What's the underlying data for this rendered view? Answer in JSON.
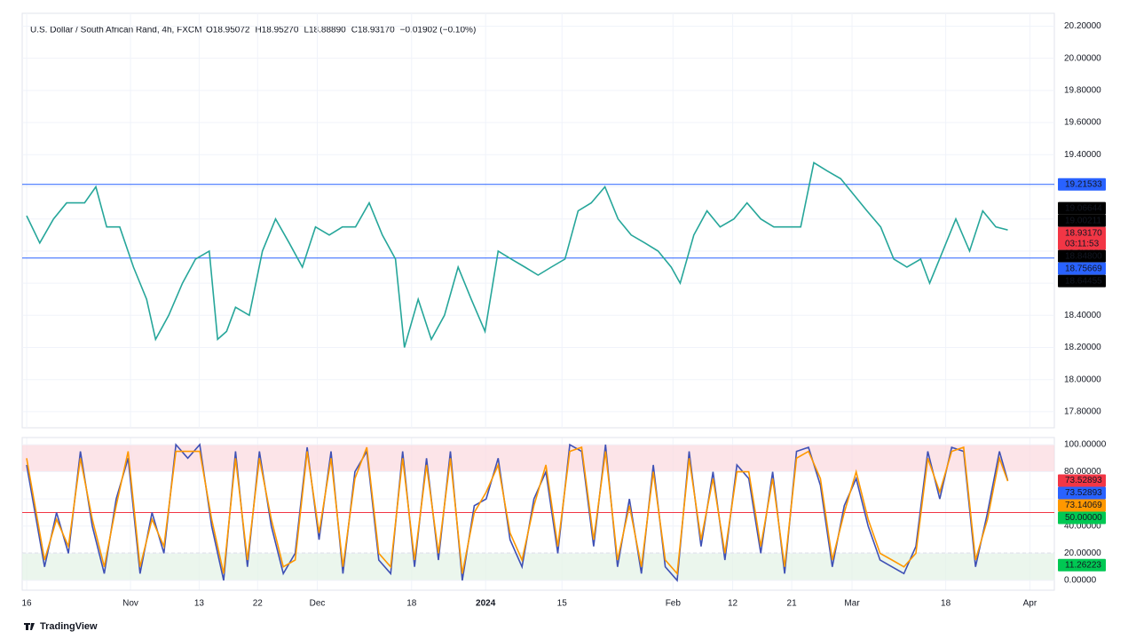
{
  "chart_data": [
    {
      "type": "line",
      "title": "U.S. Dollar / South African Rand, 4h, FXCM",
      "ohlc": [
        "O18.95072",
        "H18.95270",
        "L18.88890",
        "C18.93170",
        "−0.01902 (−0.10%)"
      ],
      "x": [
        0,
        2.2,
        4.5,
        6.7,
        9.7,
        11.6,
        13.4,
        15.6,
        17.9,
        20.1,
        21.6,
        23.8,
        26.1,
        28.3,
        30.6,
        32,
        33.5,
        35,
        37.3,
        39.5,
        41.7,
        44,
        46.2,
        48.4,
        50.7,
        52.9,
        55.1,
        57.4,
        59.6,
        61.8,
        63.3,
        65.6,
        67.8,
        70,
        72.3,
        74.5,
        76.8,
        79,
        81.2,
        83.5,
        85.7,
        87.9,
        90.2,
        92.4,
        94.6,
        96.9,
        99.1,
        101.3,
        103.6,
        105.8,
        108,
        109.5,
        111.8,
        114,
        116.2,
        118.5,
        120.7,
        123,
        125.2,
        127.4,
        129.7,
        131.9,
        134.1,
        136.4,
        138.6,
        140.8,
        143.1,
        145.3,
        147.5,
        149.8,
        151.3,
        153.5,
        155.7,
        158,
        160.2,
        162.4,
        164.4
      ],
      "series": [
        {
          "name": "USDZAR",
          "color": "#26a69a",
          "values": [
            19.02,
            18.85,
            19.0,
            19.1,
            19.1,
            19.2,
            18.95,
            18.95,
            18.7,
            18.5,
            18.25,
            18.4,
            18.6,
            18.75,
            18.8,
            18.25,
            18.3,
            18.45,
            18.4,
            18.8,
            19.0,
            18.85,
            18.7,
            18.95,
            18.9,
            18.95,
            18.95,
            19.1,
            18.9,
            18.75,
            18.2,
            18.5,
            18.25,
            18.4,
            18.7,
            18.5,
            18.3,
            18.8,
            18.75,
            18.7,
            18.65,
            18.7,
            18.75,
            19.05,
            19.1,
            19.2,
            19.0,
            18.9,
            18.85,
            18.8,
            18.7,
            18.6,
            18.9,
            19.05,
            18.95,
            19.0,
            19.1,
            19.0,
            18.95,
            18.95,
            18.95,
            19.35,
            19.3,
            19.25,
            19.15,
            19.05,
            18.95,
            18.75,
            18.7,
            18.75,
            18.6,
            18.8,
            19.0,
            18.8,
            19.05,
            18.95,
            18.9317
          ]
        }
      ],
      "xlim": [
        -0.75,
        172.2
      ],
      "xticks": [
        {
          "value": 0,
          "label": "16"
        },
        {
          "value": 17.4,
          "label": "Nov"
        },
        {
          "value": 28.9,
          "label": "13"
        },
        {
          "value": 38.7,
          "label": "22"
        },
        {
          "value": 48.7,
          "label": "Dec"
        },
        {
          "value": 64.5,
          "label": "18"
        },
        {
          "value": 76.9,
          "label": "2024"
        },
        {
          "value": 89.7,
          "label": "15"
        },
        {
          "value": 108.3,
          "label": "Feb"
        },
        {
          "value": 118.3,
          "label": "12"
        },
        {
          "value": 128.2,
          "label": "21"
        },
        {
          "value": 138.3,
          "label": "Mar"
        },
        {
          "value": 154,
          "label": "18"
        },
        {
          "value": 168.1,
          "label": "Apr"
        }
      ],
      "ylim": [
        17.7,
        20.28
      ],
      "yticks": [
        {
          "value": 17.8,
          "label": "17.80000"
        },
        {
          "value": 18.0,
          "label": "18.00000"
        },
        {
          "value": 18.2,
          "label": "18.20000"
        },
        {
          "value": 18.4,
          "label": "18.40000"
        },
        {
          "value": 18.6,
          "label": "18.60000"
        },
        {
          "value": 18.8,
          "label": "18.80000"
        },
        {
          "value": 19.0,
          "label": "19.00000"
        },
        {
          "value": 19.2,
          "label": "19.20000"
        },
        {
          "value": 19.4,
          "label": "19.40000"
        },
        {
          "value": 19.6,
          "label": "19.60000"
        },
        {
          "value": 19.8,
          "label": "19.80000"
        },
        {
          "value": 20.0,
          "label": "20.00000"
        },
        {
          "value": 20.2,
          "label": "20.20000"
        }
      ],
      "hlines": [
        {
          "value": 19.21533,
          "color": "#2962ff"
        },
        {
          "value": 18.75669,
          "color": "#2962ff"
        }
      ],
      "price_labels": [
        {
          "value": 19.21533,
          "label": "19.21533",
          "color": "#2962ff"
        },
        {
          "value": 19.06644,
          "label": "19.06644",
          "color": "#000000"
        },
        {
          "value": 19.00211,
          "label": "19.00211",
          "color": "#000000"
        },
        {
          "value": 18.9317,
          "label": "18.93170",
          "sublabel": "03:11:53",
          "color": "#f23645"
        },
        {
          "value": 18.848,
          "label": "18.84800",
          "color": "#000000"
        },
        {
          "value": 18.75669,
          "label": "18.75669",
          "color": "#2962ff"
        },
        {
          "value": 18.64455,
          "label": "18.64455",
          "color": "#000000"
        }
      ]
    },
    {
      "type": "line",
      "x": [
        0,
        3,
        5,
        7,
        9,
        11,
        13,
        15,
        17,
        19,
        21,
        23,
        25,
        27,
        29,
        31,
        33,
        35,
        37,
        39,
        41,
        43,
        45,
        47,
        49,
        51,
        53,
        55,
        57,
        59,
        61,
        63,
        65,
        67,
        69,
        71,
        73,
        75,
        77,
        79,
        81,
        83,
        85,
        87,
        89,
        91,
        93,
        95,
        97,
        99,
        101,
        103,
        105,
        107,
        109,
        111,
        113,
        115,
        117,
        119,
        121,
        123,
        125,
        127,
        129,
        131,
        133,
        135,
        137,
        139,
        141,
        143,
        145,
        147,
        149,
        151,
        153,
        155,
        157,
        159,
        161,
        163,
        164.4
      ],
      "series": [
        {
          "name": "%K",
          "color": "#3f51b5",
          "values": [
            85,
            10,
            50,
            20,
            95,
            40,
            5,
            60,
            90,
            5,
            50,
            20,
            100,
            90,
            100,
            40,
            0,
            95,
            10,
            95,
            40,
            5,
            20,
            98,
            30,
            95,
            5,
            80,
            95,
            15,
            5,
            95,
            10,
            90,
            15,
            95,
            0,
            55,
            60,
            90,
            30,
            10,
            60,
            80,
            20,
            100,
            95,
            25,
            100,
            10,
            60,
            5,
            85,
            10,
            0,
            95,
            25,
            80,
            15,
            85,
            75,
            20,
            80,
            5,
            95,
            98,
            70,
            10,
            55,
            75,
            40,
            15,
            10,
            5,
            25,
            95,
            60,
            98,
            95,
            10,
            50,
            95,
            73.52893
          ]
        },
        {
          "name": "%D",
          "color": "#ff9800",
          "values": [
            90,
            15,
            45,
            25,
            90,
            45,
            10,
            55,
            95,
            10,
            45,
            25,
            95,
            95,
            95,
            45,
            5,
            90,
            15,
            90,
            45,
            10,
            15,
            95,
            35,
            90,
            10,
            75,
            98,
            20,
            10,
            90,
            15,
            85,
            20,
            90,
            5,
            50,
            65,
            85,
            35,
            15,
            55,
            85,
            25,
            95,
            98,
            30,
            95,
            15,
            55,
            10,
            80,
            15,
            5,
            90,
            30,
            75,
            20,
            80,
            80,
            25,
            75,
            10,
            90,
            95,
            75,
            15,
            50,
            80,
            45,
            20,
            15,
            10,
            20,
            90,
            65,
            95,
            98,
            15,
            45,
            90,
            73.14069
          ]
        }
      ],
      "xlim": [
        -0.75,
        172.2
      ],
      "ylim": [
        -7.2,
        105.2
      ],
      "yticks": [
        {
          "value": 0,
          "label": "0.00000"
        },
        {
          "value": 20,
          "label": "20.00000"
        },
        {
          "value": 40,
          "label": "40.00000"
        },
        {
          "value": 60,
          "label": "60.00000"
        },
        {
          "value": 80,
          "label": "80.00000"
        },
        {
          "value": 100,
          "label": "100.00000"
        }
      ],
      "bands": [
        {
          "from": 80,
          "to": 100,
          "color": "#fbd9de"
        },
        {
          "from": 0,
          "to": 20,
          "color": "#e3f2e5"
        }
      ],
      "midline": 50,
      "price_labels": [
        {
          "value": 73.52893,
          "label": "73.52893",
          "color": "#f23645"
        },
        {
          "value": 73.52893,
          "label": "73.52893",
          "color": "#2962ff"
        },
        {
          "value": 73.14069,
          "label": "73.14069",
          "color": "#ff9800"
        },
        {
          "value": 50,
          "label": "50.00000",
          "color": "#00c853"
        },
        {
          "value": 11.26223,
          "label": "11.26223",
          "color": "#00c853"
        }
      ]
    }
  ],
  "footer": {
    "brand": "TradingView"
  }
}
